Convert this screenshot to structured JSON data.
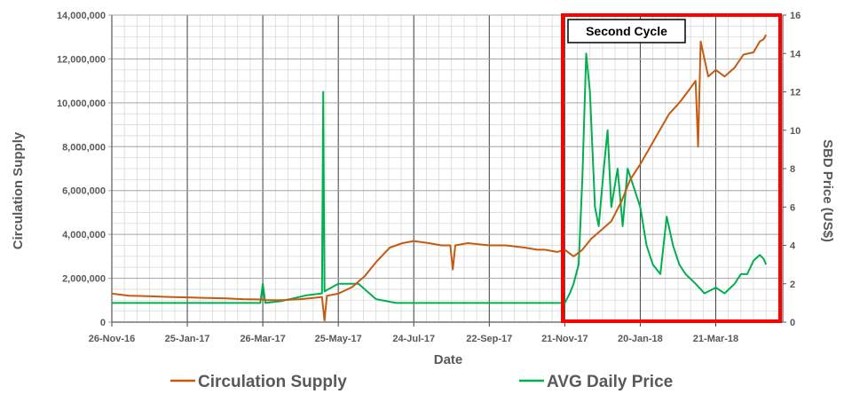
{
  "chart_data": {
    "type": "line",
    "xlabel": "Date",
    "ylabel": "Circulation Supply",
    "y2label": "SBD Price (US$)",
    "x_ticks": [
      "26-Nov-16",
      "25-Jan-17",
      "26-Mar-17",
      "25-May-17",
      "24-Jul-17",
      "22-Sep-17",
      "21-Nov-17",
      "20-Jan-18",
      "21-Mar-18"
    ],
    "y_ticks": [
      "0",
      "2,000,000",
      "4,000,000",
      "6,000,000",
      "8,000,000",
      "10,000,000",
      "12,000,000",
      "14,000,000"
    ],
    "y2_ticks": [
      "0",
      "2",
      "4",
      "6",
      "8",
      "10",
      "12",
      "14",
      "16"
    ],
    "ylim": [
      0,
      14000000
    ],
    "y2lim": [
      0,
      16
    ],
    "grid": true,
    "legend_position": "bottom",
    "annotation": "Second Cycle",
    "series": [
      {
        "name": "Circulation Supply",
        "axis": "left",
        "color": "#c55a11",
        "x": [
          "26-Nov-16",
          "10-Dec-16",
          "25-Dec-16",
          "10-Jan-17",
          "25-Jan-17",
          "10-Feb-17",
          "25-Feb-17",
          "10-Mar-17",
          "26-Mar-17",
          "28-Mar-17",
          "10-Apr-17",
          "25-Apr-17",
          "5-May-17",
          "12-May-17",
          "14-May-17",
          "16-May-17",
          "25-May-17",
          "5-Jun-17",
          "15-Jun-17",
          "25-Jun-17",
          "5-Jul-17",
          "15-Jul-17",
          "24-Jul-17",
          "5-Aug-17",
          "15-Aug-17",
          "22-Aug-17",
          "24-Aug-17",
          "26-Aug-17",
          "5-Sep-17",
          "22-Sep-17",
          "5-Oct-17",
          "20-Oct-17",
          "30-Oct-17",
          "5-Nov-17",
          "15-Nov-17",
          "21-Nov-17",
          "28-Nov-17",
          "5-Dec-17",
          "12-Dec-17",
          "20-Dec-17",
          "28-Dec-17",
          "5-Jan-18",
          "12-Jan-18",
          "20-Jan-18",
          "28-Jan-18",
          "5-Feb-18",
          "12-Feb-18",
          "20-Feb-18",
          "28-Feb-18",
          "5-Mar-18",
          "7-Mar-18",
          "9-Mar-18",
          "15-Mar-18",
          "21-Mar-18",
          "28-Mar-18",
          "5-Apr-18",
          "12-Apr-18",
          "20-Apr-18",
          "25-Apr-18",
          "28-Apr-18",
          "30-Apr-18"
        ],
        "values": [
          1300000,
          1200000,
          1180000,
          1150000,
          1130000,
          1100000,
          1080000,
          1050000,
          1030000,
          1000000,
          1000000,
          1050000,
          1100000,
          1150000,
          80000,
          1200000,
          1300000,
          1600000,
          2100000,
          2800000,
          3400000,
          3600000,
          3700000,
          3600000,
          3500000,
          3500000,
          2400000,
          3500000,
          3600000,
          3500000,
          3500000,
          3400000,
          3300000,
          3300000,
          3200000,
          3300000,
          3000000,
          3300000,
          3800000,
          4200000,
          4600000,
          5500000,
          6500000,
          7200000,
          8000000,
          8800000,
          9500000,
          10000000,
          10600000,
          11000000,
          8000000,
          12800000,
          11200000,
          11500000,
          11200000,
          11600000,
          12200000,
          12300000,
          12800000,
          12900000,
          13100000
        ]
      },
      {
        "name": "AVG Daily Price",
        "axis": "right",
        "color": "#00b050",
        "x": [
          "26-Nov-16",
          "25-Dec-16",
          "25-Jan-17",
          "25-Feb-17",
          "24-Mar-17",
          "26-Mar-17",
          "28-Mar-17",
          "10-Apr-17",
          "30-Apr-17",
          "12-May-17",
          "13-May-17",
          "14-May-17",
          "25-May-17",
          "10-Jun-17",
          "24-Jun-17",
          "10-Jul-17",
          "24-Jul-17",
          "22-Aug-17",
          "22-Sep-17",
          "22-Oct-17",
          "15-Nov-17",
          "21-Nov-17",
          "25-Nov-17",
          "28-Nov-17",
          "2-Dec-17",
          "5-Dec-17",
          "8-Dec-17",
          "11-Dec-17",
          "15-Dec-17",
          "18-Dec-17",
          "22-Dec-17",
          "25-Dec-17",
          "28-Dec-17",
          "2-Jan-18",
          "6-Jan-18",
          "10-Jan-18",
          "15-Jan-18",
          "20-Jan-18",
          "25-Jan-18",
          "30-Jan-18",
          "5-Feb-18",
          "10-Feb-18",
          "15-Feb-18",
          "20-Feb-18",
          "25-Feb-18",
          "5-Mar-18",
          "12-Mar-18",
          "21-Mar-18",
          "28-Mar-18",
          "5-Apr-18",
          "10-Apr-18",
          "15-Apr-18",
          "20-Apr-18",
          "25-Apr-18",
          "28-Apr-18",
          "30-Apr-18"
        ],
        "values": [
          1.0,
          1.0,
          1.0,
          1.0,
          1.0,
          2.0,
          1.0,
          1.1,
          1.4,
          1.5,
          12.0,
          1.6,
          2.0,
          2.0,
          1.2,
          1.0,
          1.0,
          1.0,
          1.0,
          1.0,
          1.0,
          1.0,
          1.5,
          2.0,
          3.0,
          7.5,
          14.0,
          12.0,
          6.0,
          5.0,
          8.0,
          10.0,
          6.0,
          8.0,
          5.0,
          8.0,
          7.0,
          6.0,
          4.0,
          3.0,
          2.5,
          5.5,
          4.0,
          3.0,
          2.5,
          2.0,
          1.5,
          1.8,
          1.5,
          2.0,
          2.5,
          2.5,
          3.2,
          3.5,
          3.3,
          3.0
        ]
      }
    ]
  }
}
